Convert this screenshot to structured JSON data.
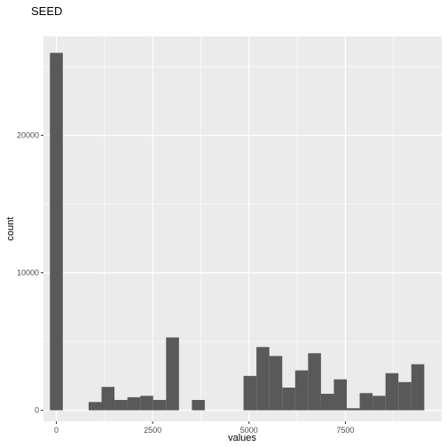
{
  "chart_data": {
    "type": "bar",
    "title": "SEED",
    "xlabel": "values",
    "ylabel": "count",
    "xlim": [
      -335,
      10000
    ],
    "ylim": [
      -800,
      27200
    ],
    "x_ticks": [
      0,
      2500,
      5000,
      7500
    ],
    "x_tick_labels": [
      "0",
      "2500",
      "5000",
      "7500"
    ],
    "y_ticks": [
      0,
      10000,
      20000
    ],
    "y_tick_labels": [
      "0",
      "10000",
      "20000"
    ],
    "x_minor_ticks": [
      1250,
      3750,
      6250,
      8750
    ],
    "y_minor_ticks": [
      5000,
      15000,
      25000
    ],
    "bin_width": 335,
    "bin_centers": [
      0,
      335,
      670,
      1005,
      1340,
      1675,
      2010,
      2345,
      2680,
      3015,
      3350,
      3685,
      4020,
      4355,
      4690,
      5025,
      5360,
      5695,
      6030,
      6365,
      6700,
      7035,
      7370,
      7705,
      8040,
      8375,
      8710,
      9045,
      9380
    ],
    "values": [
      26000,
      0,
      0,
      600,
      1700,
      750,
      950,
      1050,
      750,
      5300,
      0,
      750,
      0,
      0,
      0,
      2500,
      4600,
      3950,
      1650,
      2900,
      4150,
      1200,
      2250,
      150,
      1250,
      1050,
      2700,
      2050,
      3350
    ],
    "bar_color": "#595959",
    "panel_background": "#ebebeb",
    "grid_color": "#ffffff",
    "grid": true,
    "legend": "none"
  }
}
